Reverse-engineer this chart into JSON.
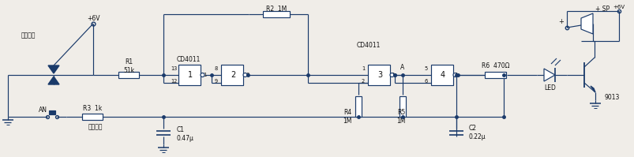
{
  "bg_color": "#f0ede8",
  "line_color": "#1a3a6a",
  "text_color": "#111111",
  "fig_width": 8.04,
  "fig_height": 1.99,
  "dpi": 100,
  "vcc_label": "+6V",
  "trigger_label": "觸发开关",
  "r1_label": "R1\n51k",
  "r2_label": "R2  1M",
  "r3_label": "R3  1k",
  "r4_label": "R4\n1M",
  "r5_label": "R5\n1M",
  "r6_label": "R6  470Ω",
  "c1_label": "C1\n0.47μ",
  "c2_label": "C2\n0.22μ",
  "ic1_label": "CD4011",
  "ic2_label": "CD4011",
  "led_label": "LED",
  "transistor_label": "9013",
  "sp_label": "+ SP",
  "an_label": "AN",
  "cancel_label": "解除按鈕",
  "point_a_label": "A"
}
